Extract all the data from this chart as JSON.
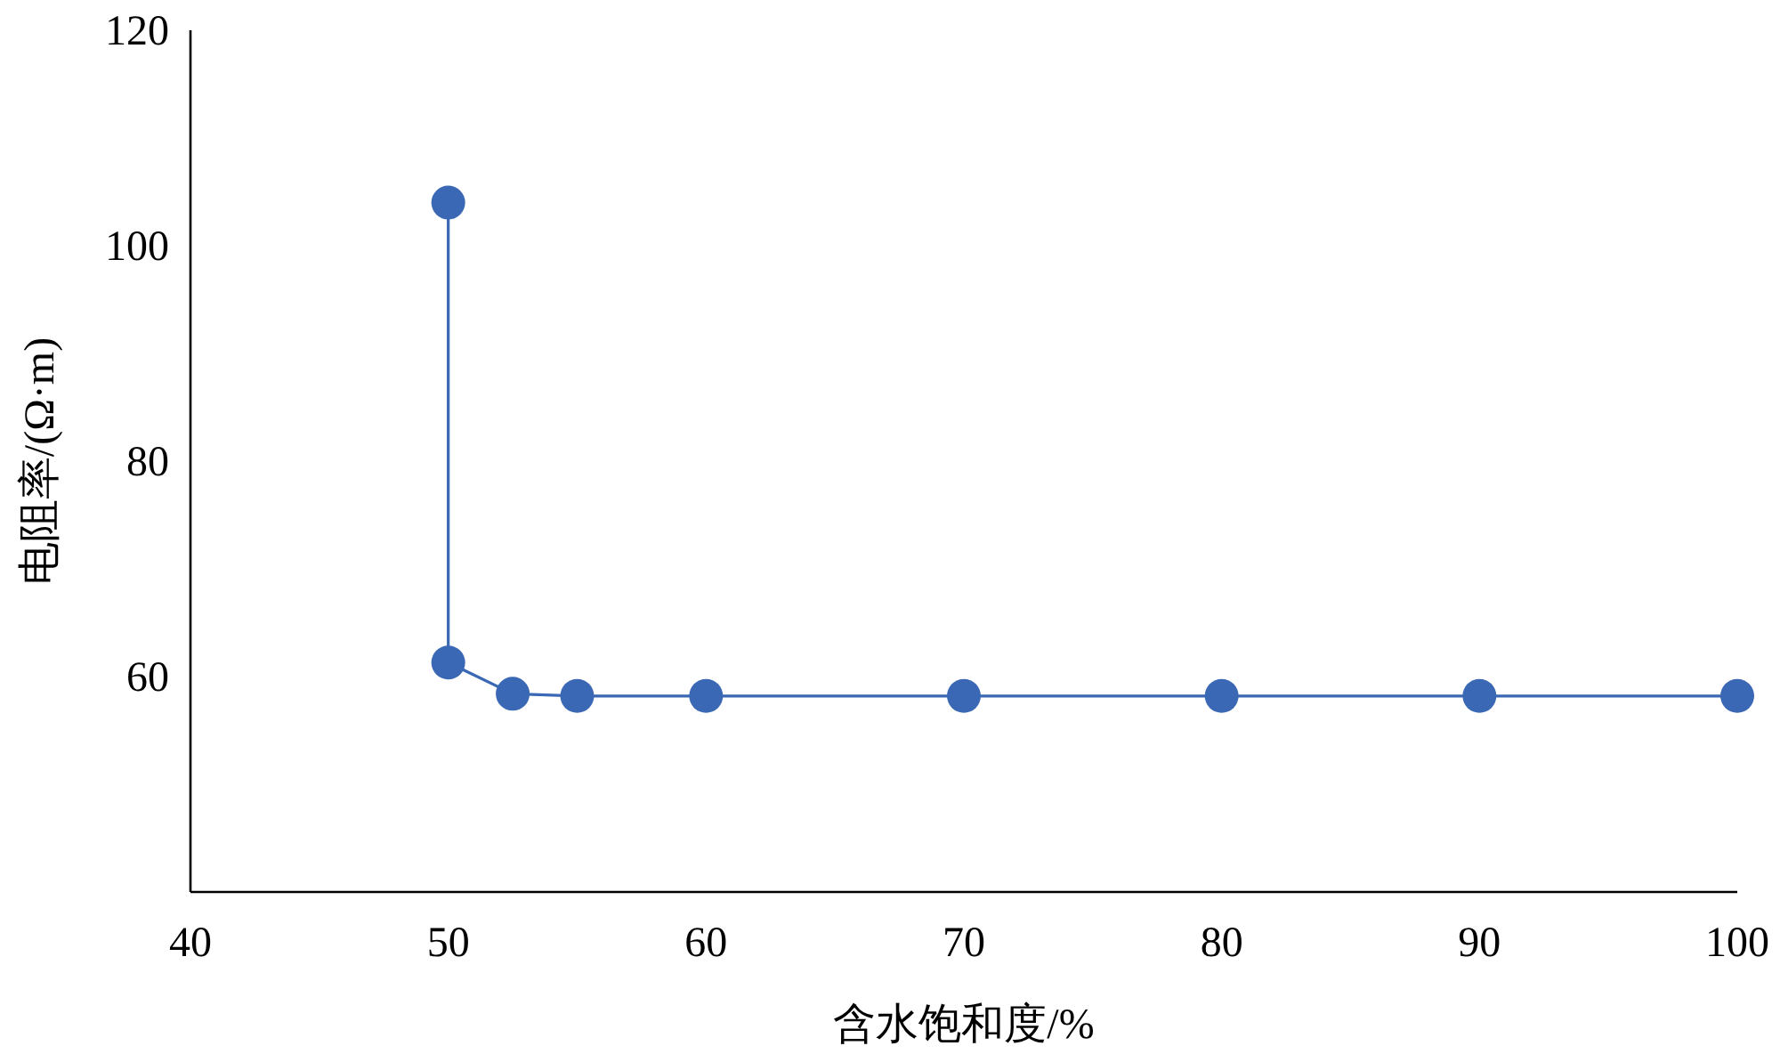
{
  "chart_data": {
    "type": "line",
    "xlabel": "含水饱和度/%",
    "ylabel": "电阻率/(Ω·m)",
    "x": [
      50,
      50,
      52.5,
      55,
      60,
      70,
      80,
      90,
      100
    ],
    "series": [
      {
        "color": "#3a68b4",
        "values": [
          104,
          61.3,
          58.4,
          58.2,
          58.2,
          58.2,
          58.2,
          58.2,
          58.2
        ]
      }
    ],
    "xlim": [
      40,
      100
    ],
    "xticks": [
      40,
      50,
      60,
      70,
      80,
      90,
      100
    ],
    "ylim": [
      40,
      120
    ],
    "yticks": [
      60,
      80,
      100,
      120
    ],
    "marker": "circle",
    "line_style": "solid",
    "grid": false
  }
}
